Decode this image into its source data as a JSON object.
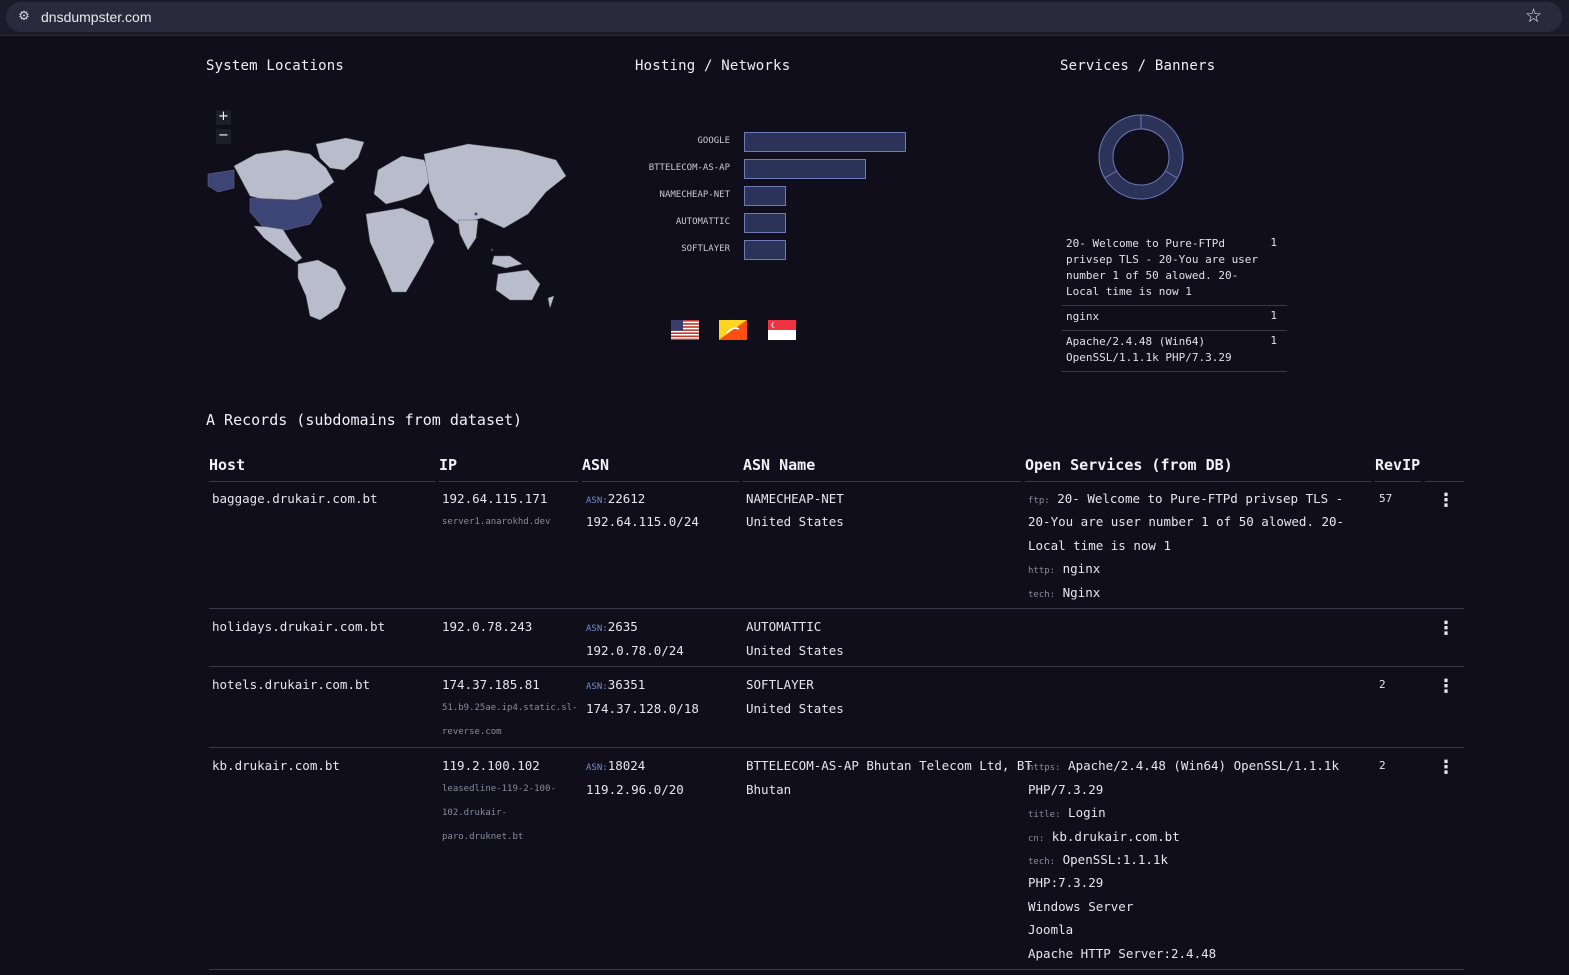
{
  "browser": {
    "url": "dnsdumpster.com"
  },
  "sections": {
    "locations_title": "System Locations",
    "hosting_title": "Hosting / Networks",
    "services_title": "Services / Banners",
    "records_title": "A Records (subdomains from dataset)"
  },
  "map": {
    "zoom_in": "+",
    "zoom_out": "−",
    "highlight_color": "#3d4577",
    "land_color": "#b9bcca"
  },
  "hosting": [
    {
      "name": "GOOGLE",
      "value": 4
    },
    {
      "name": "BTTELECOM-AS-AP",
      "value": 3
    },
    {
      "name": "NAMECHEAP-NET",
      "value": 1
    },
    {
      "name": "AUTOMATTIC",
      "value": 1
    },
    {
      "name": "SOFTLAYER",
      "value": 1
    }
  ],
  "flags": [
    "us-flag",
    "bhutan-flag",
    "singapore-flag"
  ],
  "services": [
    {
      "banner": "20- Welcome to Pure-FTPd privsep TLS - 20-You are user number 1 of 50 alowed. 20-Local time is now 1",
      "count": "1"
    },
    {
      "banner": "nginx",
      "count": "1"
    },
    {
      "banner": "Apache/2.4.48 (Win64) OpenSSL/1.1.1k PHP/7.3.29",
      "count": "1"
    }
  ],
  "table": {
    "headers": [
      "Host",
      "IP",
      "ASN",
      "ASN Name",
      "Open Services (from DB)",
      "RevIP"
    ],
    "rows": [
      {
        "host": "baggage.drukair.com.bt",
        "ip": "192.64.115.171",
        "ptr": "server1.anarokhd.dev",
        "asn_label": "ASN:",
        "asn": "22612",
        "netblock": "192.64.115.0/24",
        "asn_name": "NAMECHEAP-NET",
        "country": "United States",
        "services": [
          {
            "tag": "ftp:",
            "value": "20- Welcome to Pure-FTPd privsep TLS -"
          },
          {
            "tag": "",
            "value": "20-You are user number 1 of 50 alowed. 20-"
          },
          {
            "tag": "",
            "value": "Local time is now 1"
          },
          {
            "tag": "http:",
            "value": "nginx"
          },
          {
            "tag": "tech:",
            "value": "Nginx"
          }
        ],
        "revip": "57"
      },
      {
        "host": "holidays.drukair.com.bt",
        "ip": "192.0.78.243",
        "ptr": "",
        "asn_label": "ASN:",
        "asn": "2635",
        "netblock": "192.0.78.0/24",
        "asn_name": "AUTOMATTIC",
        "country": "United States",
        "services": [],
        "revip": ""
      },
      {
        "host": "hotels.drukair.com.bt",
        "ip": "174.37.185.81",
        "ptr": "51.b9.25ae.ip4.static.sl-reverse.com",
        "ptr_lines": [
          "51.b9.25ae.ip4.static.sl-",
          "reverse.com"
        ],
        "asn_label": "ASN:",
        "asn": "36351",
        "netblock": "174.37.128.0/18",
        "asn_name": "SOFTLAYER",
        "country": "United States",
        "services": [],
        "revip": "2"
      },
      {
        "host": "kb.drukair.com.bt",
        "ip": "119.2.100.102",
        "ptr": "leasedline-119-2-100-102.drukair-paro.druknet.bt",
        "ptr_lines": [
          "leasedline-119-2-100-",
          "102.drukair-",
          "paro.druknet.bt"
        ],
        "asn_label": "ASN:",
        "asn": "18024",
        "netblock": "119.2.96.0/20",
        "asn_name": "BTTELECOM-AS-AP Bhutan Telecom Ltd, BT",
        "country": "Bhutan",
        "services": [
          {
            "tag": "https:",
            "value": "Apache/2.4.48 (Win64) OpenSSL/1.1.1k"
          },
          {
            "tag": "",
            "value": "PHP/7.3.29"
          },
          {
            "tag": "title:",
            "value": "Login"
          },
          {
            "tag": "cn:",
            "value": "kb.drukair.com.bt"
          },
          {
            "tag": "tech:",
            "value": "OpenSSL:1.1.1k"
          },
          {
            "tag": "",
            "value": "PHP:7.3.29"
          },
          {
            "tag": "",
            "value": "Windows Server"
          },
          {
            "tag": "",
            "value": "Joomla"
          },
          {
            "tag": "",
            "value": "Apache HTTP Server:2.4.48"
          }
        ],
        "revip": "2"
      }
    ]
  },
  "colors": {
    "background": "#0f0e1a",
    "bar_fill": "#2c3358",
    "bar_border": "#6d7ab8",
    "accent": "#7b8ad0"
  }
}
